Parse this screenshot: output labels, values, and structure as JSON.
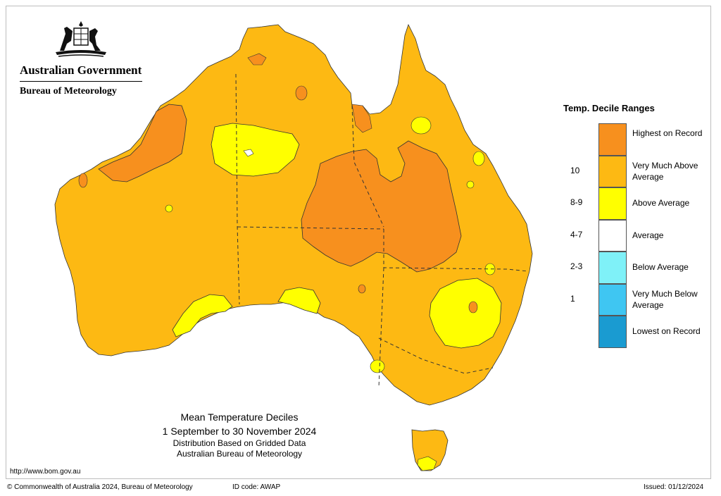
{
  "header": {
    "government": "Australian Government",
    "bureau": "Bureau of Meteorology"
  },
  "legend": {
    "title": "Temp. Decile Ranges",
    "items": [
      {
        "decile": "",
        "label": "Highest on Record",
        "color": "#f7901e"
      },
      {
        "decile": "10",
        "label": "Very Much Above Average",
        "color": "#fdb913"
      },
      {
        "decile": "8-9",
        "label": "Above Average",
        "color": "#ffff00"
      },
      {
        "decile": "4-7",
        "label": "Average",
        "color": "#ffffff"
      },
      {
        "decile": "2-3",
        "label": "Below Average",
        "color": "#7ff1f8"
      },
      {
        "decile": "1",
        "label": "Very Much Below Average",
        "color": "#3fc6f2"
      },
      {
        "decile": "",
        "label": "Lowest on Record",
        "color": "#1a9bd1"
      }
    ]
  },
  "caption": {
    "title": "Mean Temperature Deciles",
    "period": "1 September to 30 November 2024",
    "line1": "Distribution Based on Gridded Data",
    "line2": "Australian Bureau of Meteorology"
  },
  "url": "http://www.bom.gov.au",
  "footer": {
    "copyright": "© Commonwealth of Australia 2024, Bureau of Meteorology",
    "id_code": "ID code: AWAP",
    "issued": "Issued: 01/12/2024"
  },
  "colors": {
    "very_much_above": "#fdb913",
    "highest": "#f7901e",
    "above": "#ffff00",
    "average": "#ffffff",
    "outline": "#333333"
  }
}
